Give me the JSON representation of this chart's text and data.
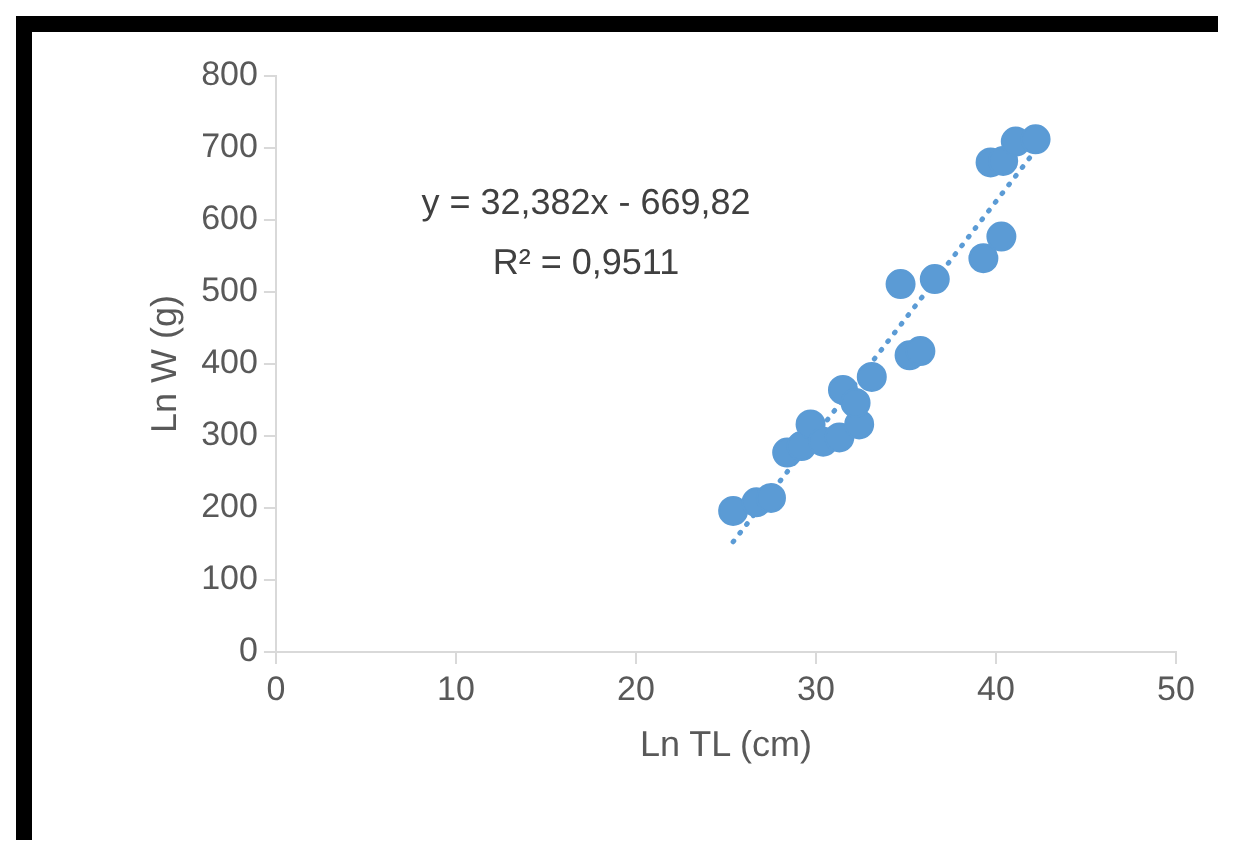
{
  "chart_data": {
    "type": "scatter",
    "xlabel": "Ln TL (cm)",
    "ylabel": "Ln W (g)",
    "xlim": [
      0,
      50
    ],
    "xticks": [
      0,
      10,
      20,
      30,
      40,
      50
    ],
    "ylim": [
      0,
      800
    ],
    "yticks": [
      0,
      100,
      200,
      300,
      400,
      500,
      600,
      700,
      800
    ],
    "grid": false,
    "legend": false,
    "marker": "circle",
    "annotations": [
      "y = 32,382x - 669,82",
      "R² = 0,9511"
    ],
    "series": [
      {
        "type": "scatter",
        "color": "#5b9bd5",
        "x": [
          25.4,
          26.7,
          27.5,
          28.4,
          29.2,
          29.7,
          30.4,
          31.3,
          31.5,
          32.4,
          32.2,
          33.1,
          34.7,
          35.2,
          35.8,
          36.6,
          39.3,
          40.3,
          39.7,
          40.4,
          41.1,
          42.2
        ],
        "values": [
          196,
          208,
          214,
          277,
          286,
          316,
          292,
          298,
          364,
          316,
          346,
          382,
          511,
          412,
          418,
          518,
          547,
          577,
          680,
          682,
          709,
          712
        ]
      },
      {
        "type": "line",
        "color": "#5b9bd5",
        "line_style": "dotted",
        "marker": "none",
        "x": [
          25.4,
          42.2
        ],
        "values": [
          153,
          697
        ]
      }
    ]
  }
}
